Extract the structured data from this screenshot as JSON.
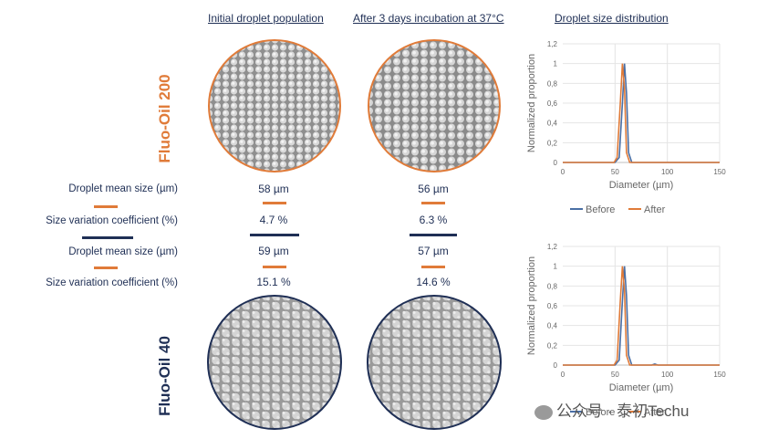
{
  "headers": {
    "initial": "Initial droplet population",
    "after": "After 3 days incubation at 37°C",
    "distribution": "Droplet size distribution"
  },
  "groups": {
    "fluo200": {
      "name": "Fluo-Oil 200",
      "color": "#e07b39"
    },
    "fluo40": {
      "name": "Fluo-Oil 40",
      "color": "#1f2f55"
    }
  },
  "metrics": {
    "fluo200": {
      "mean_label": "Droplet mean size (µm)",
      "cv_label": "Size variation coefficient (%)",
      "initial_mean": "58 µm",
      "after_mean": "56 µm",
      "initial_cv": "4.7 %",
      "after_cv": "6.3 %"
    },
    "fluo40": {
      "mean_label": "Droplet mean size (µm)",
      "cv_label": "Size variation coefficient (%)",
      "initial_mean": "59 µm",
      "after_mean": "57 µm",
      "initial_cv": "15.1 %",
      "after_cv": "14.6 %"
    }
  },
  "watermark": "公众号 · 泰初Techu",
  "chart_data": [
    {
      "type": "line",
      "xlabel": "Diameter (µm)",
      "ylabel": "Normalized proportion",
      "xlim": [
        0,
        150
      ],
      "ylim": [
        0,
        1.2
      ],
      "xticks": [
        "0",
        "50",
        "100",
        "150"
      ],
      "yticks": [
        "0",
        "0,2",
        "0,4",
        "0,6",
        "0,8",
        "1",
        "1,2"
      ],
      "grid": true,
      "legend": "bottom",
      "series": [
        {
          "name": "Before",
          "color": "#4a6fa5",
          "points": [
            [
              0,
              0
            ],
            [
              50,
              0
            ],
            [
              54,
              0.05
            ],
            [
              57,
              0.6
            ],
            [
              59,
              1.0
            ],
            [
              61,
              0.7
            ],
            [
              63,
              0.1
            ],
            [
              66,
              0
            ],
            [
              150,
              0
            ]
          ]
        },
        {
          "name": "After",
          "color": "#e07b39",
          "points": [
            [
              0,
              0
            ],
            [
              49,
              0
            ],
            [
              52,
              0.05
            ],
            [
              55,
              0.6
            ],
            [
              57,
              1.0
            ],
            [
              59,
              0.75
            ],
            [
              61,
              0.1
            ],
            [
              64,
              0
            ],
            [
              150,
              0
            ]
          ]
        }
      ]
    },
    {
      "type": "line",
      "xlabel": "Diameter (µm)",
      "ylabel": "Normalized proportion",
      "xlim": [
        0,
        150
      ],
      "ylim": [
        0,
        1.2
      ],
      "xticks": [
        "0",
        "50",
        "100",
        "150"
      ],
      "yticks": [
        "0",
        "0,2",
        "0,4",
        "0,6",
        "0,8",
        "1",
        "1,2"
      ],
      "grid": true,
      "legend": "bottom",
      "series": [
        {
          "name": "Before",
          "color": "#4a6fa5",
          "points": [
            [
              0,
              0
            ],
            [
              50,
              0
            ],
            [
              54,
              0.05
            ],
            [
              57,
              0.65
            ],
            [
              59,
              1.0
            ],
            [
              61,
              0.7
            ],
            [
              63,
              0.1
            ],
            [
              66,
              0
            ],
            [
              85,
              0
            ],
            [
              88,
              0.01
            ],
            [
              91,
              0
            ],
            [
              150,
              0
            ]
          ]
        },
        {
          "name": "After",
          "color": "#e07b39",
          "points": [
            [
              0,
              0
            ],
            [
              49,
              0
            ],
            [
              52,
              0.05
            ],
            [
              55,
              0.65
            ],
            [
              57,
              1.0
            ],
            [
              59,
              0.75
            ],
            [
              61,
              0.1
            ],
            [
              64,
              0
            ],
            [
              150,
              0
            ]
          ]
        }
      ]
    }
  ]
}
